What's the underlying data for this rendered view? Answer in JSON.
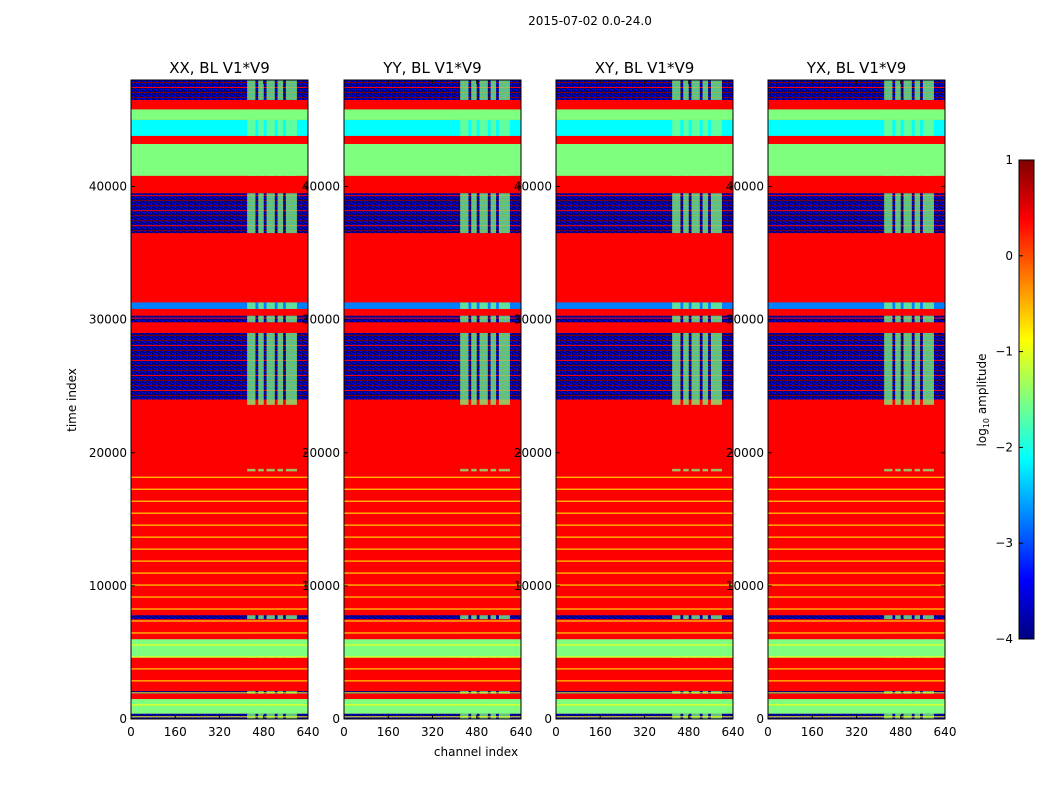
{
  "page_title": "2015-07-02 0.0-24.0",
  "colormap_colors": [
    "#00007f",
    "#0000ff",
    "#007fff",
    "#00ffff",
    "#7fff7f",
    "#ffff00",
    "#ff7f00",
    "#ff0000",
    "#7f0000"
  ],
  "chart_data": {
    "type": "heatmap",
    "title": "2015-07-02 0.0-24.0",
    "xlabel": "channel index",
    "ylabel": "time index",
    "xlim": [
      0,
      640
    ],
    "ylim": [
      0,
      48000
    ],
    "xticks": [
      0,
      160,
      320,
      480,
      640
    ],
    "yticks": [
      0,
      10000,
      20000,
      30000,
      40000
    ],
    "panels": [
      {
        "title": "XX, BL V1*V9",
        "polarization": "XX",
        "baseline": "V1*V9"
      },
      {
        "title": "YY, BL V1*V9",
        "polarization": "YY",
        "baseline": "V1*V9"
      },
      {
        "title": "XY, BL V1*V9",
        "polarization": "XY",
        "baseline": "V1*V9"
      },
      {
        "title": "YX, BL V1*V9",
        "polarization": "YX",
        "baseline": "V1*V9"
      }
    ],
    "colorbar": {
      "label_prefix": "log",
      "label_sub": "10",
      "label_suffix": " amplitude",
      "range": [
        -4,
        1
      ],
      "ticks": [
        1,
        0,
        -1,
        -2,
        -3,
        -4
      ],
      "tick_labels": [
        "1",
        "0",
        "−1",
        "−2",
        "−3",
        "−4"
      ]
    },
    "time_bands": [
      {
        "t0": 0,
        "t1": 400,
        "value": -3.5
      },
      {
        "t0": 400,
        "t1": 1500,
        "value": -1.6
      },
      {
        "t0": 1500,
        "t1": 1900,
        "value": 0.2
      },
      {
        "t0": 1900,
        "t1": 2100,
        "value": -3.8
      },
      {
        "t0": 2100,
        "t1": 4600,
        "value": 0.2
      },
      {
        "t0": 4600,
        "t1": 6000,
        "value": -1.5
      },
      {
        "t0": 6000,
        "t1": 7500,
        "value": 0.2
      },
      {
        "t0": 7500,
        "t1": 7800,
        "value": -3.8
      },
      {
        "t0": 7800,
        "t1": 18600,
        "value": 0.2
      },
      {
        "t0": 18600,
        "t1": 18800,
        "value": 0.6
      },
      {
        "t0": 18800,
        "t1": 23600,
        "value": 0.2
      },
      {
        "t0": 23600,
        "t1": 24000,
        "value": 0.6
      },
      {
        "t0": 24000,
        "t1": 29000,
        "value": -3.9
      },
      {
        "t0": 29000,
        "t1": 29800,
        "value": 0.2
      },
      {
        "t0": 29800,
        "t1": 30300,
        "value": -3.5
      },
      {
        "t0": 30300,
        "t1": 30800,
        "value": 0.2
      },
      {
        "t0": 30800,
        "t1": 31300,
        "value": -3.0
      },
      {
        "t0": 31300,
        "t1": 36500,
        "value": 0.2
      },
      {
        "t0": 36500,
        "t1": 39500,
        "value": -3.9
      },
      {
        "t0": 39500,
        "t1": 40800,
        "value": 0.2
      },
      {
        "t0": 40800,
        "t1": 43200,
        "value": -1.2
      },
      {
        "t0": 43200,
        "t1": 43800,
        "value": 0.2
      },
      {
        "t0": 43800,
        "t1": 45000,
        "value": -2.3
      },
      {
        "t0": 45000,
        "t1": 45800,
        "value": -1.3
      },
      {
        "t0": 45800,
        "t1": 46500,
        "value": 0.2
      },
      {
        "t0": 46500,
        "t1": 48000,
        "value": -3.7
      }
    ],
    "band_note": "Values are approximate dominant log10 amplitude per time range; a sparse green/cyan block pattern appears for channels ~420-600 in many ranges."
  }
}
